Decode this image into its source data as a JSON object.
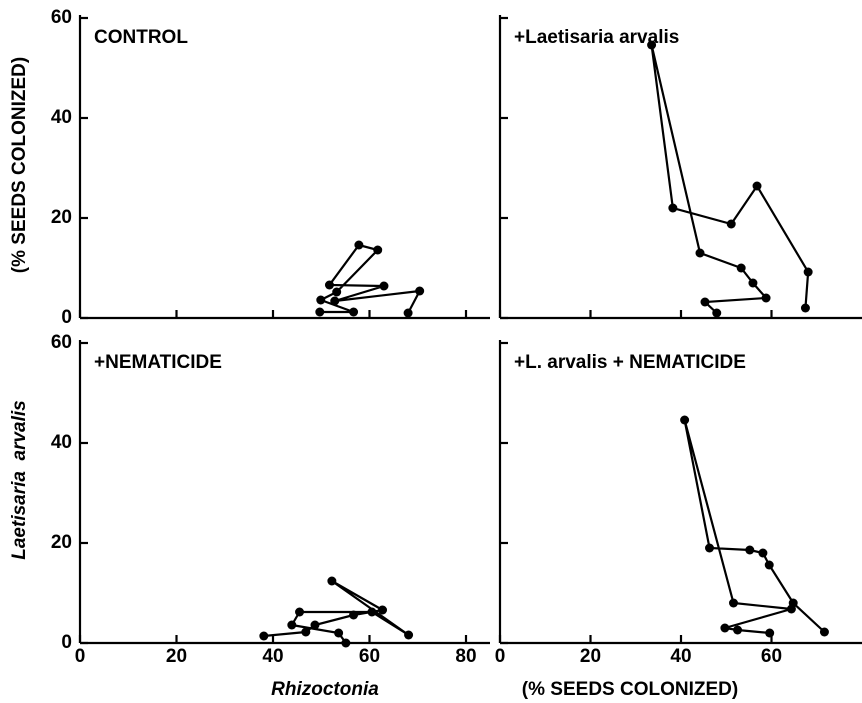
{
  "axis_labels": {
    "y_top": "(% SEEDS COLONIZED)",
    "y_bottom": "Laetisaria  arvalis",
    "x_left": "Rhizoctonia",
    "x_right": "(% SEEDS COLONIZED)"
  },
  "chart_data": [
    {
      "type": "line",
      "title": "CONTROL",
      "color": "#000000",
      "x": [
        49.7,
        56.7,
        49.9,
        53.2,
        61.7,
        57.8,
        51.7,
        63,
        52.8,
        70.4,
        68
      ],
      "values": [
        1.2,
        1.2,
        3.6,
        5.2,
        13.6,
        14.6,
        6.6,
        6.4,
        3.4,
        5.4,
        1
      ],
      "xlim": [
        0,
        80
      ],
      "ylim": [
        0,
        60
      ],
      "xticks": [
        0,
        20,
        40,
        60,
        80
      ],
      "yticks": [
        0,
        20,
        40,
        60
      ],
      "tick_labels": {
        "x": false,
        "y": true
      }
    },
    {
      "type": "line",
      "title": "+Laetisaria arvalis",
      "color": "#000000",
      "x": [
        47.9,
        45.3,
        58.8,
        55.9,
        53.3,
        44.2,
        33.5,
        38.2,
        51.1,
        56.8,
        68.1,
        67.5
      ],
      "values": [
        1,
        3.2,
        4,
        7,
        10,
        13,
        54.6,
        22,
        18.8,
        26.4,
        9.2,
        2
      ],
      "xlim": [
        0,
        80
      ],
      "ylim": [
        0,
        60
      ],
      "xticks": [
        0,
        20,
        40,
        60
      ],
      "yticks": [
        0,
        20,
        40,
        60
      ],
      "tick_labels": {
        "x": false,
        "y": false
      }
    },
    {
      "type": "line",
      "title": "+NEMATICIDE",
      "color": "#000000",
      "x": [
        38.1,
        46.8,
        48.7,
        56.7,
        62.7,
        52.2,
        68.1,
        60.5,
        45.5,
        43.9,
        53.6,
        55.1
      ],
      "values": [
        1.4,
        2.2,
        3.6,
        5.6,
        6.6,
        12.4,
        1.6,
        6.2,
        6.2,
        3.6,
        2,
        0
      ],
      "xlim": [
        0,
        80
      ],
      "ylim": [
        0,
        60
      ],
      "xticks": [
        0,
        20,
        40,
        60,
        80
      ],
      "yticks": [
        0,
        20,
        40,
        60
      ],
      "tick_labels": {
        "x": true,
        "y": true
      }
    },
    {
      "type": "line",
      "title": "+L. arvalis + NEMATICIDE",
      "color": "#000000",
      "x": [
        59.6,
        52.5,
        49.7,
        64.4,
        51.6,
        40.8,
        46.3,
        55.2,
        58.1,
        59.5,
        64.8,
        71.7
      ],
      "values": [
        2,
        2.6,
        3,
        6.8,
        8,
        44.6,
        19,
        18.6,
        18,
        15.6,
        8,
        2.2
      ],
      "xlim": [
        0,
        80
      ],
      "ylim": [
        0,
        60
      ],
      "xticks": [
        0,
        20,
        40,
        60
      ],
      "yticks": [
        0,
        20,
        40,
        60
      ],
      "tick_labels": {
        "x": true,
        "y": false
      }
    }
  ]
}
